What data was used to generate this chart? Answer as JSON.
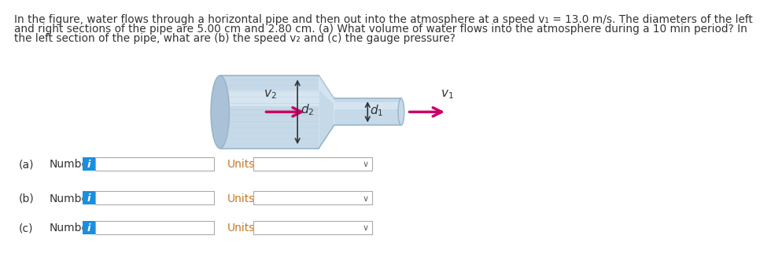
{
  "title_text_line1": "In the figure, water flows through a horizontal pipe and then out into the atmosphere at a speed v₁ = 13.0 m/s. The diameters of the left",
  "title_text_line2": "and right sections of the pipe are 5.00 cm and 2.80 cm. (a) What volume of water flows into the atmosphere during a 10 min period? In",
  "title_text_line3": "the left section of the pipe, what are (b) the speed v₂ and (c) the gauge pressure?",
  "bg_color": "#ffffff",
  "text_color": "#333333",
  "units_color": "#c87820",
  "blue_color": "#1a8fdf",
  "pipe_fill": "#c5d9e8",
  "pipe_dark": "#9ab5ca",
  "pipe_light": "#ddeaf4",
  "pipe_ellipse": "#aac2d8",
  "arrow_color": "#cc0066",
  "label_color": "#333333",
  "rows": [
    {
      "label": "(a)",
      "text": "Number"
    },
    {
      "label": "(b)",
      "text": "Number"
    },
    {
      "label": "(c)",
      "text": "Number"
    }
  ]
}
